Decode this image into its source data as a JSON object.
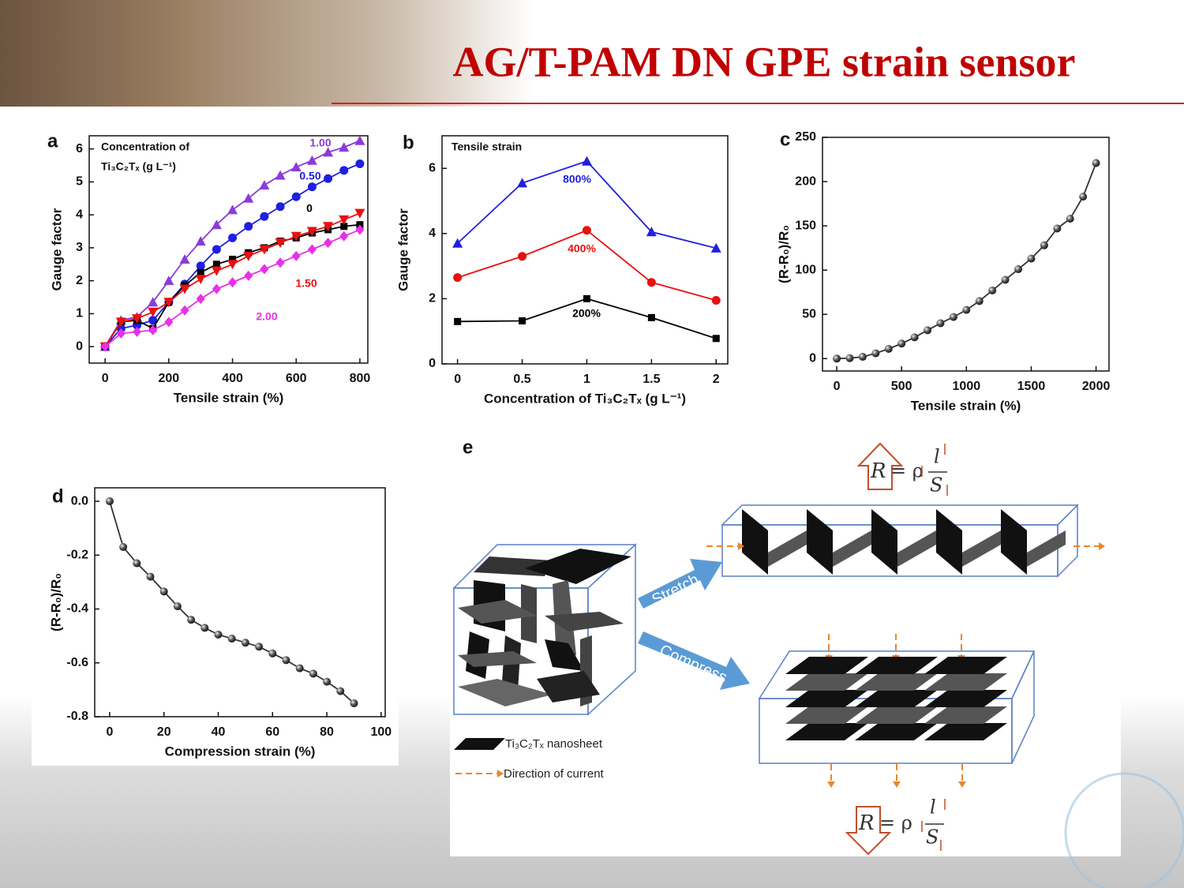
{
  "title": "AG/T-PAM DN GPE strain sensor",
  "chart_data": [
    {
      "type": "line",
      "panel": "a",
      "legend_title": [
        "Concentration of",
        "Ti₃C₂Tₓ (g L⁻¹)"
      ],
      "x_label": "Tensile strain (%)",
      "y_label": "Gauge factor",
      "xlim": [
        -50,
        825
      ],
      "ylim": [
        -0.5,
        6.4
      ],
      "xticks": [
        0,
        200,
        400,
        600,
        800
      ],
      "yticks": [
        0,
        1,
        2,
        3,
        4,
        5,
        6
      ],
      "x": [
        0,
        50,
        100,
        150,
        200,
        250,
        300,
        350,
        400,
        450,
        500,
        550,
        600,
        650,
        700,
        750,
        800
      ],
      "series": [
        {
          "name": "1.00",
          "color": "#8b3bdb",
          "marker": "triangle",
          "values": [
            0,
            0.8,
            0.9,
            1.35,
            2.0,
            2.65,
            3.2,
            3.7,
            4.15,
            4.5,
            4.9,
            5.2,
            5.45,
            5.65,
            5.9,
            6.05,
            6.25
          ]
        },
        {
          "name": "0.50",
          "color": "#1f1fe0",
          "marker": "circle",
          "values": [
            0,
            0.55,
            0.65,
            0.8,
            1.35,
            1.9,
            2.45,
            2.95,
            3.3,
            3.65,
            3.95,
            4.25,
            4.55,
            4.85,
            5.1,
            5.35,
            5.55
          ]
        },
        {
          "name": "0",
          "color": "#000000",
          "marker": "square",
          "values": [
            0,
            0.75,
            0.8,
            0.55,
            1.35,
            1.85,
            2.25,
            2.5,
            2.65,
            2.85,
            3.0,
            3.2,
            3.3,
            3.45,
            3.55,
            3.65,
            3.7
          ]
        },
        {
          "name": "1.50",
          "color": "#e81010",
          "marker": "triangle-down",
          "values": [
            0,
            0.75,
            0.85,
            1.05,
            1.35,
            1.75,
            2.05,
            2.3,
            2.5,
            2.75,
            2.95,
            3.15,
            3.35,
            3.5,
            3.65,
            3.85,
            4.05
          ]
        },
        {
          "name": "2.00",
          "color": "#e830e8",
          "marker": "diamond",
          "values": [
            0,
            0.4,
            0.45,
            0.5,
            0.75,
            1.1,
            1.45,
            1.75,
            1.95,
            2.15,
            2.35,
            2.55,
            2.75,
            2.95,
            3.15,
            3.35,
            3.55
          ]
        }
      ]
    },
    {
      "type": "line",
      "panel": "b",
      "legend_title": [
        "Tensile strain"
      ],
      "x_label": "Concentration of Ti₃C₂Tₓ (g L⁻¹)",
      "y_label": "Gauge factor",
      "xlim": [
        -0.12,
        2.09
      ],
      "ylim": [
        0,
        7
      ],
      "xticks": [
        0,
        0.5,
        1,
        1.5,
        2
      ],
      "yticks": [
        0,
        2,
        4,
        6
      ],
      "x": [
        0,
        0.5,
        1,
        1.5,
        2
      ],
      "series": [
        {
          "name": "800%",
          "color": "#1f1fe0",
          "marker": "triangle",
          "values": [
            3.7,
            5.55,
            6.22,
            4.05,
            3.55
          ]
        },
        {
          "name": "400%",
          "color": "#e81010",
          "marker": "circle",
          "values": [
            2.65,
            3.3,
            4.1,
            2.5,
            1.95
          ]
        },
        {
          "name": "200%",
          "color": "#000000",
          "marker": "square",
          "values": [
            1.3,
            1.32,
            2.0,
            1.42,
            0.78
          ]
        }
      ]
    },
    {
      "type": "line",
      "panel": "c",
      "x_label": "Tensile strain (%)",
      "y_label": "(R-R₀)/R₀",
      "xlim": [
        -110,
        2100
      ],
      "ylim": [
        -14,
        250
      ],
      "xticks": [
        0,
        500,
        1000,
        1500,
        2000
      ],
      "yticks": [
        0,
        50,
        100,
        150,
        200,
        250
      ],
      "x": [
        0,
        100,
        200,
        300,
        400,
        500,
        600,
        700,
        800,
        900,
        1000,
        1100,
        1200,
        1300,
        1400,
        1500,
        1600,
        1700,
        1800,
        1900,
        2000
      ],
      "series": [
        {
          "color": "#333333",
          "marker": "sphere",
          "values": [
            0,
            0.5,
            2,
            6,
            11,
            17,
            24,
            32,
            40,
            47,
            55,
            65,
            77,
            89,
            101,
            113,
            128,
            147,
            158,
            183,
            221
          ]
        }
      ]
    },
    {
      "type": "line",
      "panel": "d",
      "x_label": "Compression strain (%)",
      "y_label": "(R-R₀)/R₀",
      "xlim": [
        -5.5,
        101.5
      ],
      "ylim": [
        -0.8,
        0.05
      ],
      "xticks": [
        0,
        20,
        40,
        60,
        80,
        100
      ],
      "yticks": [
        {
          "value": 0,
          "label": "0.0"
        },
        -0.2,
        -0.4,
        -0.6,
        -0.8
      ],
      "x": [
        0,
        5,
        10,
        15,
        20,
        25,
        30,
        35,
        40,
        45,
        50,
        55,
        60,
        65,
        70,
        75,
        80,
        85,
        90
      ],
      "series": [
        {
          "color": "#333333",
          "marker": "sphere",
          "values": [
            0,
            -0.17,
            -0.23,
            -0.28,
            -0.335,
            -0.39,
            -0.44,
            -0.47,
            -0.495,
            -0.51,
            -0.525,
            -0.54,
            -0.565,
            -0.59,
            -0.62,
            -0.64,
            -0.67,
            -0.705,
            -0.75
          ]
        }
      ]
    }
  ],
  "diagram": {
    "panel": "e",
    "stretch": "Stretch",
    "compress": "Compress",
    "legend": [
      "Ti₃C₂Tₓ nanosheet",
      "Direction of current"
    ],
    "formula": {
      "lhs": "R",
      "eq": "= ρ",
      "num": "l",
      "den": "S"
    }
  }
}
